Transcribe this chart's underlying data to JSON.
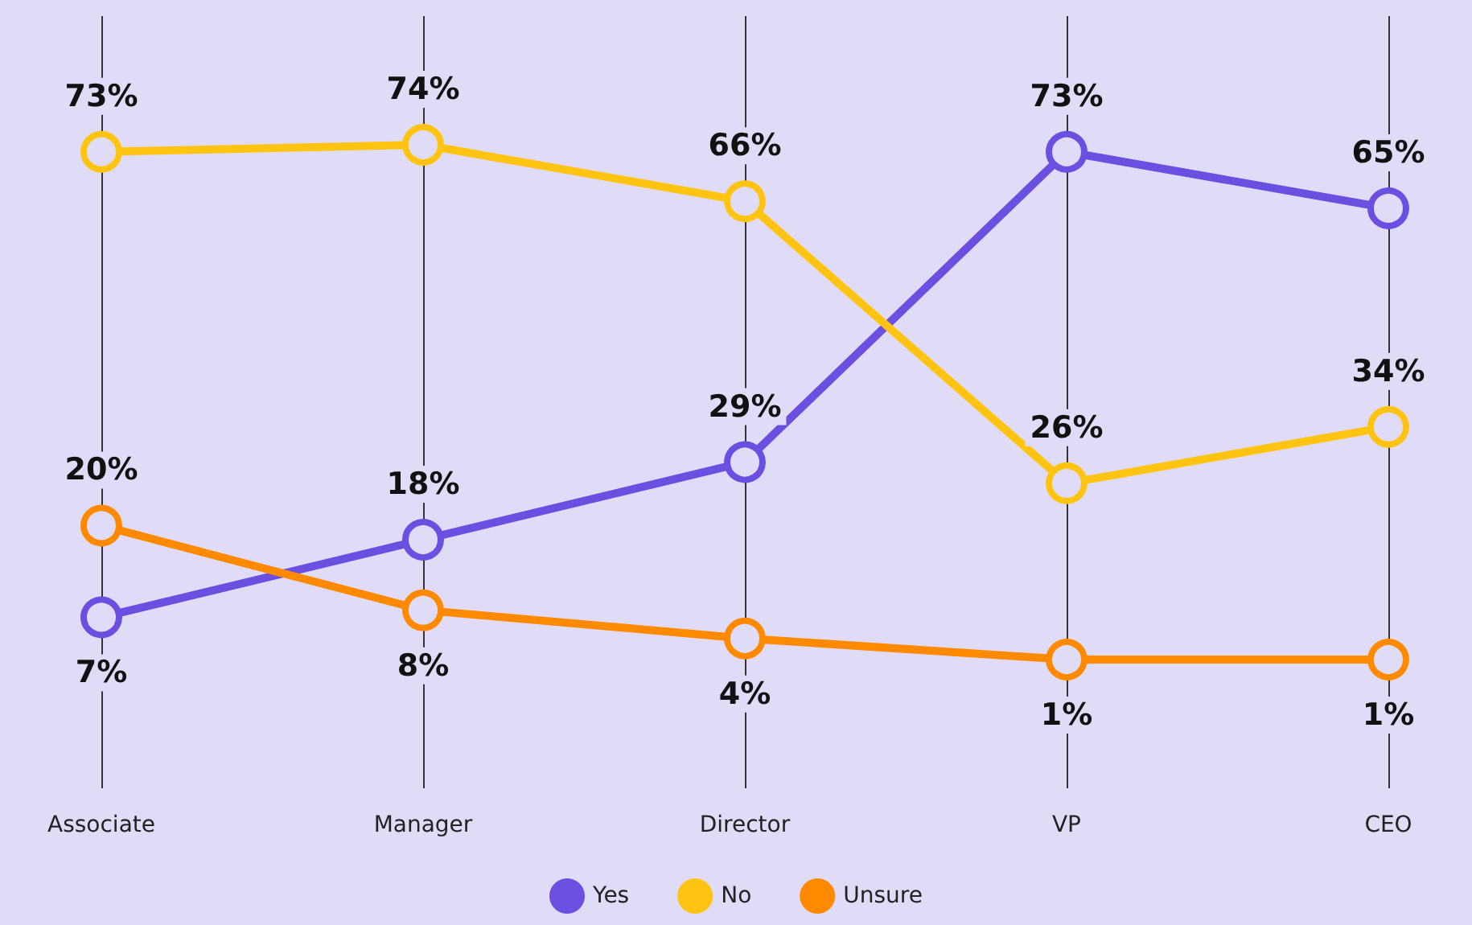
{
  "chart_data": {
    "type": "line",
    "categories": [
      "Associate",
      "Manager",
      "Director",
      "VP",
      "CEO"
    ],
    "series": [
      {
        "name": "Yes",
        "color": "#6a4fe0",
        "values": [
          7,
          18,
          29,
          73,
          65
        ],
        "value_labels": [
          "7%",
          "18%",
          "29%",
          "73%",
          "65%"
        ]
      },
      {
        "name": "No",
        "color": "#ffc412",
        "values": [
          73,
          74,
          66,
          26,
          34
        ],
        "value_labels": [
          "73%",
          "74%",
          "66%",
          "26%",
          "34%"
        ]
      },
      {
        "name": "Unsure",
        "color": "#ff8a00",
        "values": [
          20,
          8,
          4,
          1,
          1
        ],
        "value_labels": [
          "20%",
          "8%",
          "4%",
          "1%",
          "1%"
        ]
      }
    ],
    "grid": "x",
    "legend": "bottom",
    "marker": "circle",
    "line_style": "solid"
  }
}
